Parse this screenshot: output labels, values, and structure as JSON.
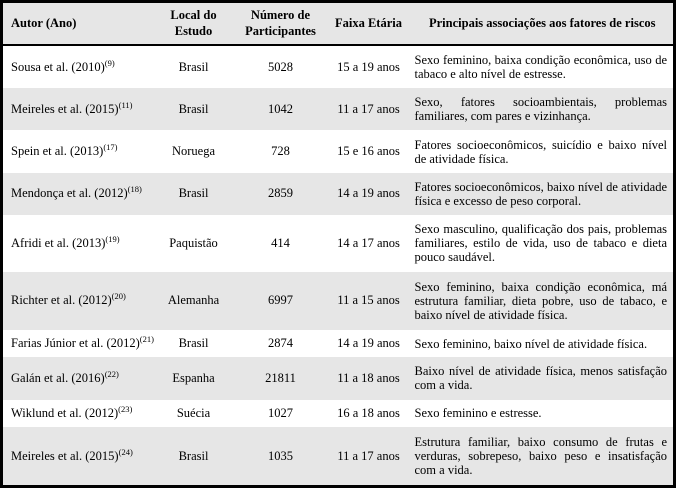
{
  "table": {
    "colors": {
      "stripe": "#e6e6e6",
      "border": "#000000",
      "background": "#ffffff"
    },
    "columns": [
      {
        "label": "Autor (Ano)"
      },
      {
        "label": "Local do Estudo"
      },
      {
        "label": "Número de Participantes"
      },
      {
        "label": "Faixa Etária"
      },
      {
        "label": "Principais associações aos fatores de riscos"
      }
    ],
    "rows": [
      {
        "author": "Sousa et al. (2010)",
        "ref": "(9)",
        "local": "Brasil",
        "participants": "5028",
        "age": "15 a 19 anos",
        "associations": "Sexo feminino, baixa condição econômica, uso de tabaco e alto nível de estresse."
      },
      {
        "author": "Meireles et al. (2015)",
        "ref": "(11)",
        "local": "Brasil",
        "participants": "1042",
        "age": "11 a 17 anos",
        "associations": "Sexo, fatores socioambientais, problemas familiares, com pares e vizinhança."
      },
      {
        "author": "Spein et al. (2013)",
        "ref": "(17)",
        "local": "Noruega",
        "participants": "728",
        "age": "15 e 16 anos",
        "associations": "Fatores socioeconômicos, suicídio e baixo nível de atividade física."
      },
      {
        "author": "Mendonça et al. (2012)",
        "ref": "(18)",
        "local": "Brasil",
        "participants": "2859",
        "age": "14 a 19 anos",
        "associations": "Fatores socioeconômicos, baixo nível de atividade física e excesso de peso corporal."
      },
      {
        "author": "Afridi et al. (2013)",
        "ref": "(19)",
        "local": "Paquistão",
        "participants": "414",
        "age": "14 a 17 anos",
        "associations": "Sexo masculino, qualificação dos pais, problemas familiares, estilo de vida, uso de tabaco e dieta pouco saudável."
      },
      {
        "author": "Richter et al. (2012)",
        "ref": "(20)",
        "local": "Alemanha",
        "participants": "6997",
        "age": "11 a 15 anos",
        "associations": "Sexo feminino, baixa condição econômica, má estrutura familiar, dieta pobre, uso de tabaco, e baixo nível de atividade física."
      },
      {
        "author": "Farias Júnior et al. (2012)",
        "ref": "(21)",
        "local": "Brasil",
        "participants": "2874",
        "age": "14 a 19 anos",
        "associations": "Sexo feminino, baixo nível de atividade física."
      },
      {
        "author": "Galán et al. (2016)",
        "ref": "(22)",
        "local": "Espanha",
        "participants": "21811",
        "age": "11 a 18 anos",
        "associations": "Baixo nível de atividade física, menos satisfação com a vida."
      },
      {
        "author": "Wiklund et al. (2012)",
        "ref": "(23)",
        "local": "Suécia",
        "participants": "1027",
        "age": "16 a 18 anos",
        "associations": "Sexo feminino e estresse."
      },
      {
        "author": "Meireles et al. (2015)",
        "ref": "(24)",
        "local": "Brasil",
        "participants": "1035",
        "age": "11 a 17 anos",
        "associations": "Estrutura familiar, baixo consumo de frutas e verduras, sobrepeso, baixo peso e insatisfação com a vida."
      }
    ]
  }
}
